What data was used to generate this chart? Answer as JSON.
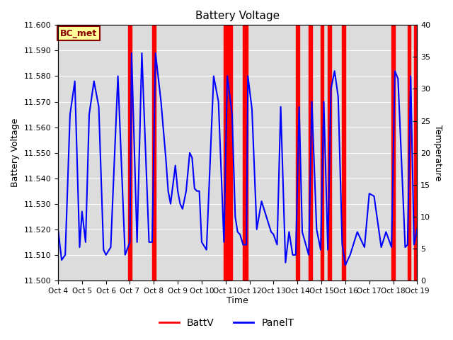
{
  "title": "Battery Voltage",
  "xlabel": "Time",
  "ylabel_left": "Battery Voltage",
  "ylabel_right": "Temperature",
  "ylim_left": [
    11.5,
    11.6
  ],
  "ylim_right": [
    0,
    40
  ],
  "xlim": [
    0,
    15
  ],
  "x_tick_labels": [
    "Oct 4",
    "Oct 5",
    "Oct 6",
    "Oct 7",
    "Oct 8",
    "Oct 9",
    "Oct 10",
    "Oct 11",
    "Oct 12",
    "Oct 13",
    "Oct 14",
    "Oct 15",
    "Oct 16",
    "Oct 17",
    "Oct 18",
    "Oct 19"
  ],
  "annotation_label": "BC_met",
  "annotation_bg": "#ffff99",
  "annotation_border": "#8b0000",
  "bg_color": "#dcdcdc",
  "red_span_color": "#ff0000",
  "blue_line_color": "#0000ff",
  "legend_labels": [
    "BattV",
    "PanelT"
  ],
  "legend_colors": [
    "#ff0000",
    "#0000ff"
  ],
  "red_spans": [
    [
      2.93,
      3.07
    ],
    [
      3.93,
      4.07
    ],
    [
      6.93,
      7.27
    ],
    [
      7.73,
      7.93
    ],
    [
      9.93,
      10.07
    ],
    [
      10.47,
      10.6
    ],
    [
      10.97,
      11.1
    ],
    [
      11.27,
      11.4
    ],
    [
      11.87,
      12.0
    ],
    [
      13.93,
      14.07
    ],
    [
      14.6,
      14.73
    ],
    [
      14.87,
      15.0
    ]
  ],
  "blue_x": [
    0,
    0.15,
    0.3,
    0.5,
    0.7,
    0.9,
    1.0,
    1.15,
    1.3,
    1.5,
    1.7,
    1.9,
    2.0,
    2.2,
    2.5,
    2.8,
    3.0,
    3.07,
    3.3,
    3.5,
    3.8,
    3.93,
    4.07,
    4.3,
    4.5,
    4.6,
    4.7,
    4.9,
    5.0,
    5.1,
    5.2,
    5.35,
    5.5,
    5.6,
    5.7,
    5.8,
    5.9,
    6.0,
    6.2,
    6.5,
    6.7,
    6.93,
    7.07,
    7.27,
    7.4,
    7.5,
    7.6,
    7.73,
    7.87,
    7.93,
    8.1,
    8.3,
    8.5,
    8.7,
    8.9,
    9.0,
    9.15,
    9.3,
    9.5,
    9.65,
    9.8,
    9.93,
    10.07,
    10.2,
    10.47,
    10.6,
    10.8,
    10.97,
    11.1,
    11.27,
    11.4,
    11.55,
    11.7,
    11.87,
    12.0,
    12.2,
    12.5,
    12.8,
    13.0,
    13.2,
    13.5,
    13.7,
    13.93,
    14.07,
    14.2,
    14.5,
    14.6,
    14.73,
    14.87,
    15.0
  ],
  "blue_y": [
    11.52,
    11.508,
    11.51,
    11.565,
    11.578,
    11.513,
    11.527,
    11.515,
    11.565,
    11.578,
    11.568,
    11.512,
    11.51,
    11.513,
    11.58,
    11.51,
    11.515,
    11.589,
    11.515,
    11.589,
    11.515,
    11.515,
    11.589,
    11.57,
    11.548,
    11.535,
    11.53,
    11.545,
    11.535,
    11.53,
    11.528,
    11.535,
    11.55,
    11.548,
    11.536,
    11.535,
    11.535,
    11.515,
    11.512,
    11.58,
    11.57,
    11.515,
    11.58,
    11.565,
    11.525,
    11.519,
    11.518,
    11.514,
    11.514,
    11.58,
    11.567,
    11.52,
    11.531,
    11.525,
    11.519,
    11.518,
    11.514,
    11.568,
    11.507,
    11.519,
    11.51,
    11.51,
    11.568,
    11.519,
    11.51,
    11.57,
    11.52,
    11.512,
    11.57,
    11.512,
    11.575,
    11.582,
    11.572,
    11.514,
    11.506,
    11.51,
    11.519,
    11.513,
    11.534,
    11.533,
    11.513,
    11.519,
    11.513,
    11.582,
    11.579,
    11.513,
    11.514,
    11.58,
    11.514,
    11.52
  ]
}
